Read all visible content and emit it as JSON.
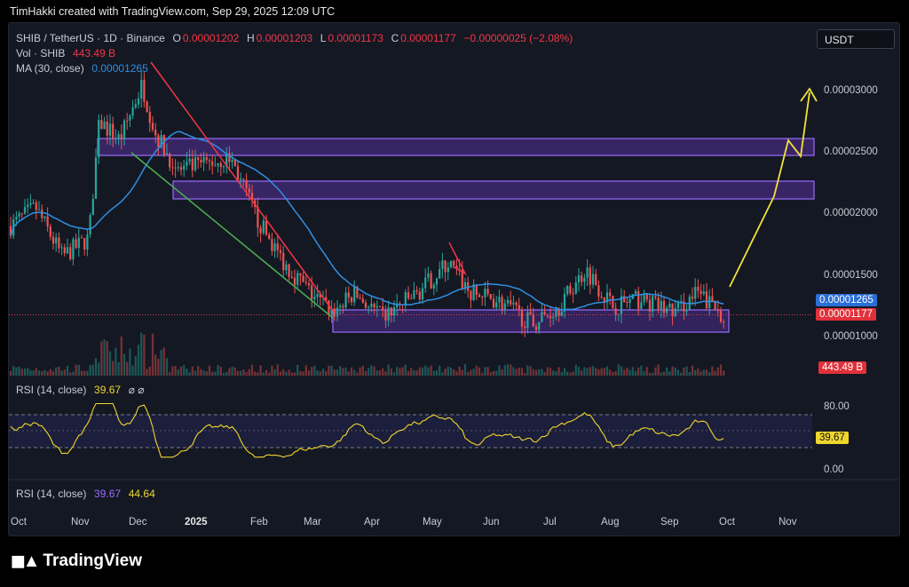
{
  "header": {
    "created": "TimHakki created with TradingView.com, Sep 29, 2025 12:09 UTC"
  },
  "symbol": {
    "pair": "SHIB / TetherUS · 1D · Binance",
    "o_label": "O",
    "o": "0.00001202",
    "h_label": "H",
    "h": "0.00001203",
    "l_label": "L",
    "l": "0.00001173",
    "c_label": "C",
    "c": "0.00001177",
    "change": "−0.00000025 (−2.08%)"
  },
  "vol": {
    "label": "Vol · SHIB",
    "value": "443.49 B"
  },
  "ma": {
    "label": "MA (30, close)",
    "value": "0.00001265"
  },
  "currency_button": "USDT",
  "price_axis": [
    "0.00003000",
    "0.00002500",
    "0.00002000",
    "0.00001500",
    "0.00001000"
  ],
  "price_tags": {
    "ma": "0.00001265",
    "last": "0.00001177",
    "volume": "443.49 B"
  },
  "rsi1": {
    "label": "RSI (14, close)",
    "value": "39.67",
    "icons": "⌀ ⌀"
  },
  "rsi_axis": [
    "80.00",
    "0.00"
  ],
  "rsi_tag": "39.67",
  "rsi2": {
    "label": "RSI (14, close)",
    "value1": "39.67",
    "value2": "44.64"
  },
  "time_axis": [
    "Oct",
    "Nov",
    "Dec",
    "2025",
    "Feb",
    "Mar",
    "Apr",
    "May",
    "Jun",
    "Jul",
    "Aug",
    "Sep",
    "Oct",
    "Nov"
  ],
  "brand": "TradingView",
  "colors": {
    "bg": "#141823",
    "up": "#26a69a",
    "down": "#ef5350",
    "ma": "#2f8fe3",
    "zone": "#7b3fe0",
    "projection": "#f2e33a"
  }
}
